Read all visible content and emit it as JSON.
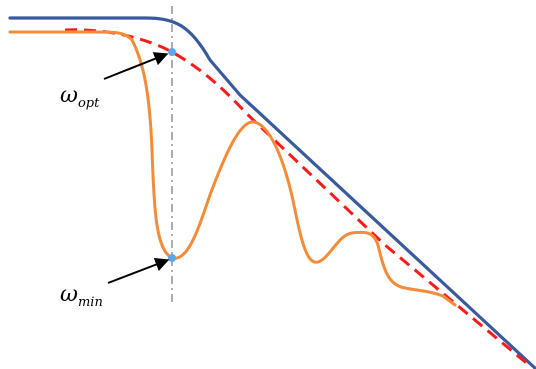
{
  "labels": {
    "omega_opt": {
      "main": "ω",
      "sub": "opt"
    },
    "omega_min": {
      "main": "ω",
      "sub": "min"
    }
  },
  "colors": {
    "upper_curve": "#3a5a9e",
    "dashed_curve": "#ff1a1a",
    "oscillating_curve": "#f28c3a",
    "marker_points": "#5aa7e8",
    "vertical_guide": "#7a7a7a",
    "arrows": "#000000",
    "background": "#ffffff"
  },
  "legend": []
}
